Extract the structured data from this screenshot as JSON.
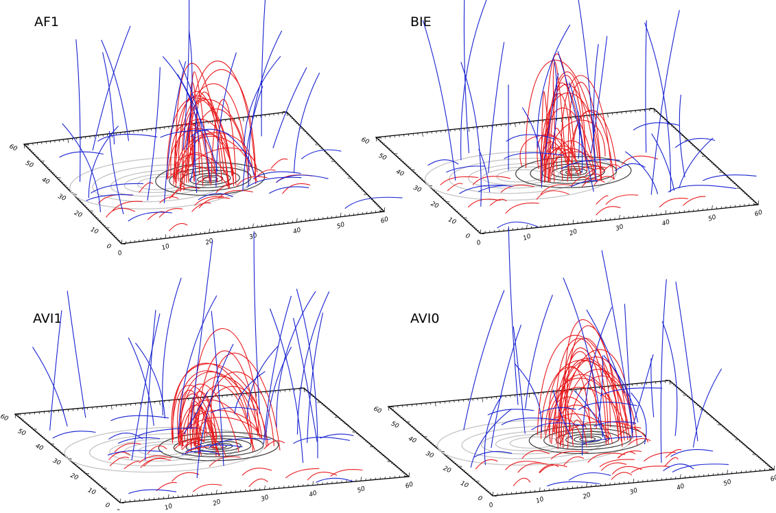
{
  "colors": {
    "closed_field": "#e8191c",
    "open_field": "#1520d0",
    "contour_positive": "#3a3a3a",
    "contour_negative": "#c4c4c4",
    "axes": "#000000"
  },
  "axis_ticks": {
    "x": [
      "0",
      "10",
      "20",
      "30",
      "40",
      "50",
      "60"
    ],
    "y": [
      "0",
      "10",
      "20",
      "30",
      "40",
      "50",
      "60"
    ]
  },
  "panels": [
    {
      "id": "AF1",
      "label": "AF1"
    },
    {
      "id": "BIE",
      "label": "BIE"
    },
    {
      "id": "AVI1",
      "label": "AVI1"
    },
    {
      "id": "AVI0",
      "label": "AVI0"
    }
  ]
}
